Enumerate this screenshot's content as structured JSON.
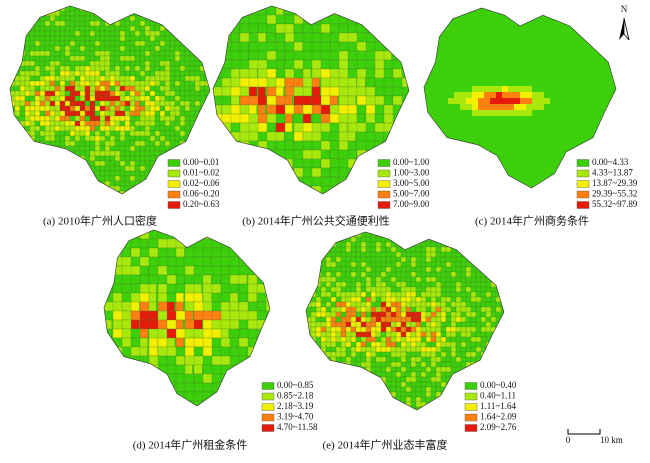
{
  "panels": [
    {
      "caption": "(a) 2010年广州人口密度",
      "legend": [
        "0.00~0.01",
        "0.01~0.02",
        "0.02~0.06",
        "0.06~0.20",
        "0.20~0.63"
      ]
    },
    {
      "caption": "(b) 2014年广州公共交通便利性",
      "legend": [
        "0.00~1.00",
        "1.00~3.00",
        "3.00~5.00",
        "5.00~7.00",
        "7.00~9.00"
      ]
    },
    {
      "caption": "(c) 2014年广州商务条件",
      "legend": [
        "0.00~4.33",
        "4.33~13.87",
        "13.87~29.39",
        "29.39~55.32",
        "55.32~97.89"
      ]
    },
    {
      "caption": "(d) 2014年广州租金条件",
      "legend": [
        "0.00~0.85",
        "0.85~2.18",
        "2.18~3.19",
        "3.19~4.70",
        "4.70~11.58"
      ]
    },
    {
      "caption": "(e) 2014年广州业态丰富度",
      "legend": [
        "0.00~0.40",
        "0.40~1.11",
        "1.11~1.64",
        "1.64~2.09",
        "2.09~2.76"
      ]
    }
  ],
  "legend_colors": [
    "#3ccf0a",
    "#a8e80c",
    "#f2f000",
    "#ff7f10",
    "#e61a0a"
  ],
  "north": "N",
  "scale": {
    "start": "0",
    "end": "10 km"
  }
}
